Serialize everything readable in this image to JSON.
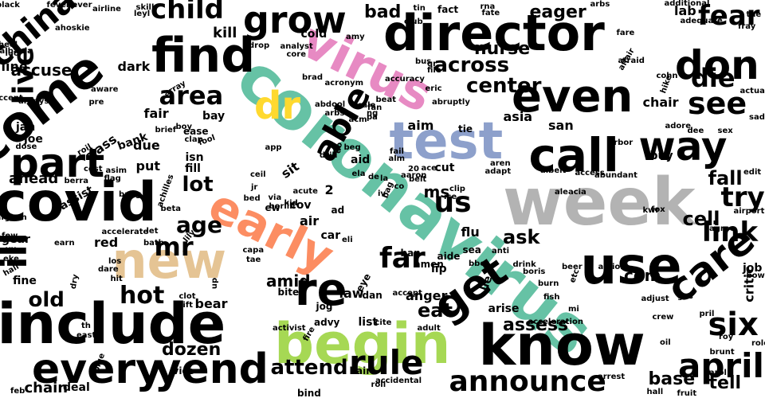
{
  "colors": {
    "black": "#000000",
    "teal": "#66c2a5",
    "orange": "#fc8d62",
    "blue": "#8da0cb",
    "pink": "#e78ac3",
    "lime": "#a6d854",
    "yellow": "#ffd92f",
    "tan": "#e5c494",
    "gray": "#b3b3b3"
  },
  "words": [
    {
      "text": "coronavirus",
      "color": "teal"
    },
    {
      "text": "test",
      "color": "blue"
    },
    {
      "text": "virus",
      "color": "pink"
    },
    {
      "text": "early",
      "color": "orange"
    },
    {
      "text": "week",
      "color": "gray"
    },
    {
      "text": "begin",
      "color": "lime"
    },
    {
      "text": "new",
      "color": "tan"
    },
    {
      "text": "dr",
      "color": "yellow"
    },
    {
      "text": "director",
      "color": "black"
    },
    {
      "text": "include",
      "color": "black"
    },
    {
      "text": "know",
      "color": "black"
    },
    {
      "text": "call",
      "color": "black"
    },
    {
      "text": "use",
      "color": "black"
    },
    {
      "text": "even",
      "color": "black"
    },
    {
      "text": "find",
      "color": "black"
    },
    {
      "text": "covid",
      "color": "black"
    },
    {
      "text": "part",
      "color": "black"
    },
    {
      "text": "get",
      "color": "black"
    },
    {
      "text": "come",
      "color": "black"
    },
    {
      "text": "china",
      "color": "black"
    },
    {
      "text": "every",
      "color": "black"
    },
    {
      "text": "yend",
      "color": "black"
    },
    {
      "text": "way",
      "color": "black"
    },
    {
      "text": "april",
      "color": "black"
    },
    {
      "text": "don",
      "color": "black"
    },
    {
      "text": "grow",
      "color": "black"
    },
    {
      "text": "re",
      "color": "black"
    },
    {
      "text": "care",
      "color": "black"
    },
    {
      "text": "see",
      "color": "black"
    },
    {
      "text": "rule",
      "color": "black"
    },
    {
      "text": "announce",
      "color": "black"
    },
    {
      "text": "six",
      "color": "black"
    },
    {
      "text": "live",
      "color": "black"
    },
    {
      "text": "child",
      "color": "black"
    },
    {
      "text": "ill",
      "color": "black"
    },
    {
      "text": "able",
      "color": "black"
    },
    {
      "text": "area",
      "color": "black"
    },
    {
      "text": "across",
      "color": "black"
    },
    {
      "text": "center",
      "color": "black"
    },
    {
      "text": "fear",
      "color": "black"
    },
    {
      "text": "die",
      "color": "black"
    },
    {
      "text": "try",
      "color": "black"
    },
    {
      "text": "link",
      "color": "black"
    },
    {
      "text": "age",
      "color": "black"
    },
    {
      "text": "mr",
      "color": "black"
    },
    {
      "text": "lot",
      "color": "black"
    },
    {
      "text": "hot",
      "color": "black"
    },
    {
      "text": "far",
      "color": "black"
    },
    {
      "text": "us",
      "color": "black"
    },
    {
      "text": "ask",
      "color": "black"
    },
    {
      "text": "attend",
      "color": "black"
    },
    {
      "text": "dozen",
      "color": "black"
    },
    {
      "text": "old",
      "color": "black"
    },
    {
      "text": "chain",
      "color": "black"
    },
    {
      "text": "tell",
      "color": "black"
    },
    {
      "text": "base",
      "color": "black"
    },
    {
      "text": "assess",
      "color": "black"
    },
    {
      "text": "eat",
      "color": "black"
    },
    {
      "text": "fall",
      "color": "black"
    },
    {
      "text": "cell",
      "color": "black"
    },
    {
      "text": "com",
      "color": "black"
    },
    {
      "text": "eager",
      "color": "black"
    },
    {
      "text": "nurse",
      "color": "black"
    },
    {
      "text": "bad",
      "color": "black"
    },
    {
      "text": "kill",
      "color": "black"
    },
    {
      "text": "accuse",
      "color": "black"
    },
    {
      "text": "ahead",
      "color": "black"
    },
    {
      "text": "class",
      "color": "black"
    },
    {
      "text": "bank",
      "color": "black"
    },
    {
      "text": "cov",
      "color": "black"
    },
    {
      "text": "aim",
      "color": "black"
    },
    {
      "text": "tie",
      "color": "black"
    },
    {
      "text": "fair",
      "color": "black"
    },
    {
      "text": "bay",
      "color": "black"
    },
    {
      "text": "due",
      "color": "black"
    },
    {
      "text": "asia",
      "color": "black"
    },
    {
      "text": "san",
      "color": "black"
    },
    {
      "text": "ms",
      "color": "black"
    },
    {
      "text": "amid",
      "color": "black"
    },
    {
      "text": "anger",
      "color": "black"
    },
    {
      "text": "law",
      "color": "black"
    },
    {
      "text": "bear",
      "color": "black"
    },
    {
      "text": "arise",
      "color": "black"
    },
    {
      "text": "critic",
      "color": "black"
    },
    {
      "text": "job",
      "color": "black"
    },
    {
      "text": "chair",
      "color": "black"
    },
    {
      "text": "flu",
      "color": "black"
    },
    {
      "text": "lab",
      "color": "black"
    },
    {
      "text": "cold",
      "color": "black"
    },
    {
      "text": "fact",
      "color": "black"
    },
    {
      "text": "dark",
      "color": "black"
    },
    {
      "text": "line",
      "color": "black"
    },
    {
      "text": "jan",
      "color": "black"
    },
    {
      "text": "joe",
      "color": "black"
    },
    {
      "text": "dose",
      "color": "black"
    },
    {
      "text": "put",
      "color": "black"
    },
    {
      "text": "isn",
      "color": "black"
    },
    {
      "text": "fill",
      "color": "black"
    },
    {
      "text": "assist",
      "color": "black"
    },
    {
      "text": "gear",
      "color": "black"
    },
    {
      "text": "fine",
      "color": "black"
    },
    {
      "text": "red",
      "color": "black"
    },
    {
      "text": "air",
      "color": "black"
    },
    {
      "text": "car",
      "color": "black"
    },
    {
      "text": "aid",
      "color": "black"
    },
    {
      "text": "buy",
      "color": "black"
    },
    {
      "text": "sit",
      "color": "black"
    },
    {
      "text": "cut",
      "color": "black"
    },
    {
      "text": "list",
      "color": "black"
    },
    {
      "text": "deal",
      "color": "black"
    },
    {
      "text": "hair",
      "color": "black"
    },
    {
      "text": "bind",
      "color": "black"
    },
    {
      "text": "lie",
      "color": "black"
    },
    {
      "text": "up",
      "color": "black"
    },
    {
      "text": "2",
      "color": "black"
    },
    {
      "text": "ew",
      "color": "black"
    },
    {
      "text": "ad",
      "color": "black"
    },
    {
      "text": "bite",
      "color": "black"
    },
    {
      "text": "jog",
      "color": "black"
    },
    {
      "text": "advy",
      "color": "black"
    },
    {
      "text": "eye",
      "color": "black"
    },
    {
      "text": "dan",
      "color": "black"
    },
    {
      "text": "lip",
      "color": "black"
    },
    {
      "text": "sea",
      "color": "black"
    },
    {
      "text": "aide",
      "color": "black"
    },
    {
      "text": "amen",
      "color": "black"
    },
    {
      "text": "ban",
      "color": "black"
    },
    {
      "text": "accept",
      "color": "black"
    },
    {
      "text": "adult",
      "color": "black"
    },
    {
      "text": "cite",
      "color": "black"
    },
    {
      "text": "fire",
      "color": "black"
    },
    {
      "text": "activist",
      "color": "black"
    },
    {
      "text": "lift",
      "color": "black"
    },
    {
      "text": "clot",
      "color": "black"
    },
    {
      "text": "los",
      "color": "black"
    },
    {
      "text": "bath",
      "color": "black"
    },
    {
      "text": "lily",
      "color": "black"
    },
    {
      "text": "let",
      "color": "black"
    },
    {
      "text": "accelerate",
      "color": "black"
    },
    {
      "text": "dare",
      "color": "black"
    },
    {
      "text": "hit",
      "color": "black"
    },
    {
      "text": "dry",
      "color": "black"
    },
    {
      "text": "earn",
      "color": "black"
    },
    {
      "text": "yu",
      "color": "black"
    },
    {
      "text": "eke",
      "color": "black"
    },
    {
      "text": "few",
      "color": "black"
    },
    {
      "text": "vice",
      "color": "black"
    },
    {
      "text": "hall",
      "color": "black"
    },
    {
      "text": "berra",
      "color": "black"
    },
    {
      "text": "afghan",
      "color": "black"
    },
    {
      "text": "bang",
      "color": "black"
    },
    {
      "text": "beta",
      "color": "black"
    },
    {
      "text": "achilles",
      "color": "black"
    },
    {
      "text": "via",
      "color": "black"
    },
    {
      "text": "kid",
      "color": "black"
    },
    {
      "text": "acute",
      "color": "black"
    },
    {
      "text": "jr",
      "color": "black"
    },
    {
      "text": "ceil",
      "color": "black"
    },
    {
      "text": "bed",
      "color": "black"
    },
    {
      "text": "asim",
      "color": "black"
    },
    {
      "text": "flag",
      "color": "black"
    },
    {
      "text": "cost",
      "color": "black"
    },
    {
      "text": "roil",
      "color": "black"
    },
    {
      "text": "ease",
      "color": "black"
    },
    {
      "text": "clap",
      "color": "black"
    },
    {
      "text": "boy",
      "color": "black"
    },
    {
      "text": "brief",
      "color": "black"
    },
    {
      "text": "fool",
      "color": "black"
    },
    {
      "text": "app",
      "color": "black"
    },
    {
      "text": "drill",
      "color": "black"
    },
    {
      "text": "abdool",
      "color": "black"
    },
    {
      "text": "arbs",
      "color": "black"
    },
    {
      "text": "fan",
      "color": "black"
    },
    {
      "text": "beat",
      "color": "black"
    },
    {
      "text": "ng",
      "color": "black"
    },
    {
      "text": "cale",
      "color": "black"
    },
    {
      "text": "eric",
      "color": "black"
    },
    {
      "text": "abruptly",
      "color": "black"
    },
    {
      "text": "accuracy",
      "color": "black"
    },
    {
      "text": "file",
      "color": "black"
    },
    {
      "text": "qr",
      "color": "black"
    },
    {
      "text": "bus",
      "color": "black"
    },
    {
      "text": "acronym",
      "color": "black"
    },
    {
      "text": "amy",
      "color": "black"
    },
    {
      "text": "brad",
      "color": "black"
    },
    {
      "text": "core",
      "color": "black"
    },
    {
      "text": "analyst",
      "color": "black"
    },
    {
      "text": "drop",
      "color": "black"
    },
    {
      "text": "aware",
      "color": "black"
    },
    {
      "text": "pre",
      "color": "black"
    },
    {
      "text": "array",
      "color": "black"
    },
    {
      "text": "always",
      "color": "black"
    },
    {
      "text": "albania",
      "color": "black"
    },
    {
      "text": "luo",
      "color": "black"
    },
    {
      "text": "heel",
      "color": "black"
    },
    {
      "text": "black",
      "color": "black"
    },
    {
      "text": "fever",
      "color": "black"
    },
    {
      "text": "ever",
      "color": "black"
    },
    {
      "text": "ahoskie",
      "color": "black"
    },
    {
      "text": "skill",
      "color": "black"
    },
    {
      "text": "leyl",
      "color": "black"
    },
    {
      "text": "airline",
      "color": "black"
    },
    {
      "text": "tin",
      "color": "black"
    },
    {
      "text": "club",
      "color": "black"
    },
    {
      "text": "rna",
      "color": "black"
    },
    {
      "text": "fate",
      "color": "black"
    },
    {
      "text": "arbs",
      "color": "black"
    },
    {
      "text": "fare",
      "color": "black"
    },
    {
      "text": "additional",
      "color": "black"
    },
    {
      "text": "adequate",
      "color": "black"
    },
    {
      "text": "fray",
      "color": "black"
    },
    {
      "text": "tue",
      "color": "black"
    },
    {
      "text": "affair",
      "color": "black"
    },
    {
      "text": "afraid",
      "color": "black"
    },
    {
      "text": "cohn",
      "color": "black"
    },
    {
      "text": "hike",
      "color": "black"
    },
    {
      "text": "actual",
      "color": "black"
    },
    {
      "text": "sad",
      "color": "black"
    },
    {
      "text": "adore",
      "color": "black"
    },
    {
      "text": "dee",
      "color": "black"
    },
    {
      "text": "sex",
      "color": "black"
    },
    {
      "text": "arbor",
      "color": "black"
    },
    {
      "text": "kwr",
      "color": "black"
    },
    {
      "text": "edit",
      "color": "black"
    },
    {
      "text": "airport",
      "color": "black"
    },
    {
      "text": "fox",
      "color": "black"
    },
    {
      "text": "agree",
      "color": "black"
    },
    {
      "text": "bow",
      "color": "black"
    },
    {
      "text": "gas",
      "color": "black"
    },
    {
      "text": "adjust",
      "color": "black"
    },
    {
      "text": "pril",
      "color": "black"
    },
    {
      "text": "crew",
      "color": "black"
    },
    {
      "text": "oil",
      "color": "black"
    },
    {
      "text": "roy",
      "color": "black"
    },
    {
      "text": "role",
      "color": "black"
    },
    {
      "text": "brunt",
      "color": "black"
    },
    {
      "text": "carol",
      "color": "black"
    },
    {
      "text": "fruit",
      "color": "black"
    },
    {
      "text": "hall",
      "color": "black"
    },
    {
      "text": "arrest",
      "color": "black"
    },
    {
      "text": "accidental",
      "color": "black"
    },
    {
      "text": "roll",
      "color": "black"
    },
    {
      "text": "acceleration",
      "color": "black"
    },
    {
      "text": "mi",
      "color": "black"
    },
    {
      "text": "fish",
      "color": "black"
    },
    {
      "text": "burn",
      "color": "black"
    },
    {
      "text": "boris",
      "color": "black"
    },
    {
      "text": "drink",
      "color": "black"
    },
    {
      "text": "beer",
      "color": "black"
    },
    {
      "text": "etc",
      "color": "black"
    },
    {
      "text": "action",
      "color": "black"
    },
    {
      "text": "aleacia",
      "color": "black"
    },
    {
      "text": "access",
      "color": "black"
    },
    {
      "text": "abundant",
      "color": "black"
    },
    {
      "text": "albeit",
      "color": "black"
    },
    {
      "text": "adapt",
      "color": "black"
    },
    {
      "text": "aren",
      "color": "black"
    },
    {
      "text": "clip",
      "color": "black"
    },
    {
      "text": "ice",
      "color": "black"
    },
    {
      "text": "anti",
      "color": "black"
    },
    {
      "text": "bbc",
      "color": "black"
    },
    {
      "text": "belt",
      "color": "black"
    },
    {
      "text": "ace",
      "color": "black"
    },
    {
      "text": "aaron",
      "color": "black"
    },
    {
      "text": "iv",
      "color": "black"
    },
    {
      "text": "bag",
      "color": "black"
    },
    {
      "text": "co",
      "color": "black"
    },
    {
      "text": "20",
      "color": "black"
    },
    {
      "text": "de",
      "color": "black"
    },
    {
      "text": "la",
      "color": "black"
    },
    {
      "text": "alm",
      "color": "black"
    },
    {
      "text": "fail",
      "color": "black"
    },
    {
      "text": "ela",
      "color": "black"
    },
    {
      "text": "do",
      "color": "black"
    },
    {
      "text": "beg",
      "color": "black"
    },
    {
      "text": "acm",
      "color": "black"
    },
    {
      "text": "pa",
      "color": "black"
    },
    {
      "text": "th",
      "color": "black"
    },
    {
      "text": "east",
      "color": "black"
    },
    {
      "text": "blue",
      "color": "black"
    },
    {
      "text": "feb",
      "color": "black"
    },
    {
      "text": "capa",
      "color": "black"
    },
    {
      "text": "tae",
      "color": "black"
    },
    {
      "text": "accent",
      "color": "black"
    },
    {
      "text": "berlin",
      "color": "black"
    },
    {
      "text": "eli",
      "color": "black"
    },
    {
      "text": "k",
      "color": "black"
    }
  ]
}
